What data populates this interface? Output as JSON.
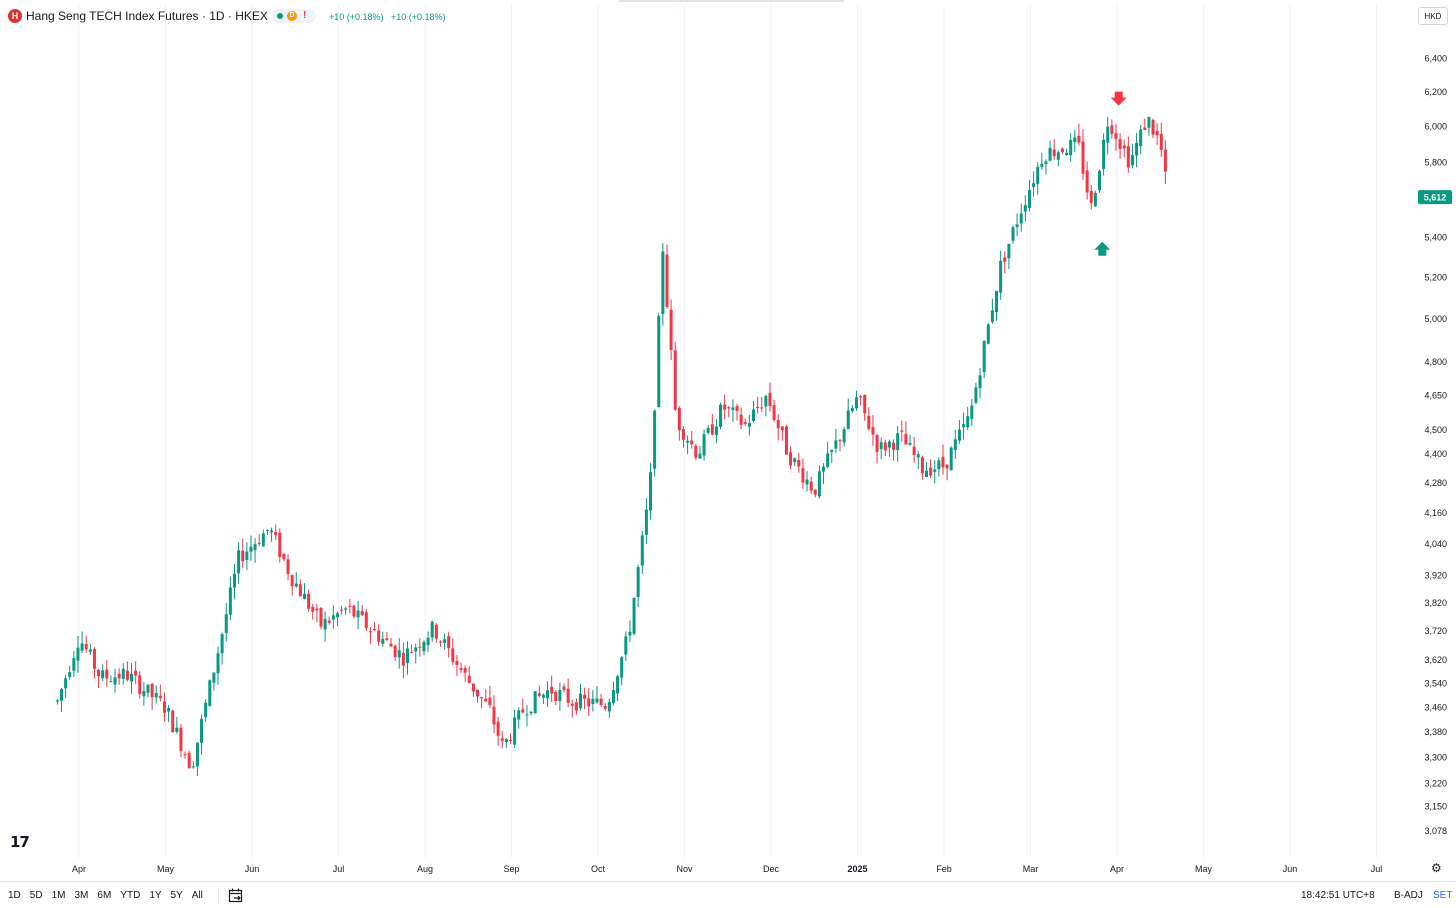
{
  "header": {
    "logo_letter": "H",
    "symbol_title": "Hang Seng TECH Index Futures · 1D · HKEX",
    "status_delay_letter": "D",
    "status_warning": "!",
    "change_1": "+10 (+0.18%)",
    "change_2": "+10 (+0.18%)",
    "currency": "HKD"
  },
  "toolbar_bottom": {
    "ranges": [
      "1D",
      "5D",
      "1M",
      "3M",
      "6M",
      "YTD",
      "1Y",
      "5Y",
      "All"
    ],
    "clock": "18:42:51 UTC+8",
    "adjustment": "B-ADJ",
    "session": "SET"
  },
  "branding": {
    "logo_text": "17"
  },
  "colors": {
    "up": "#089981",
    "down": "#f23645",
    "grid": "#f0f3fa",
    "text": "#131722",
    "price_tag": "#089981"
  },
  "icons": {
    "settings": "gear-icon",
    "calendar": "calendar-goto-icon",
    "signal_up": "arrow-up-icon",
    "signal_down": "arrow-down-icon"
  },
  "chart_data": {
    "type": "candlestick",
    "y_scale": "log",
    "ylim": [
      3000,
      6550
    ],
    "y_ticks": [
      6400,
      6200,
      6000,
      5800,
      5400,
      5200,
      5000,
      4800,
      4650,
      4500,
      4400,
      4280,
      4160,
      4040,
      3920,
      3820,
      3720,
      3620,
      3540,
      3460,
      3380,
      3300,
      3220,
      3150,
      3078
    ],
    "x_labels": [
      {
        "label": "Apr",
        "month_index": 1,
        "bold": false
      },
      {
        "label": "May",
        "month_index": 2,
        "bold": false
      },
      {
        "label": "Jun",
        "month_index": 3,
        "bold": false
      },
      {
        "label": "Jul",
        "month_index": 4,
        "bold": false
      },
      {
        "label": "Aug",
        "month_index": 5,
        "bold": false
      },
      {
        "label": "Sep",
        "month_index": 6,
        "bold": false
      },
      {
        "label": "Oct",
        "month_index": 7,
        "bold": false
      },
      {
        "label": "Nov",
        "month_index": 8,
        "bold": false
      },
      {
        "label": "Dec",
        "month_index": 9,
        "bold": false
      },
      {
        "label": "2025",
        "month_index": 10,
        "bold": true
      },
      {
        "label": "Feb",
        "month_index": 11,
        "bold": false
      },
      {
        "label": "Mar",
        "month_index": 12,
        "bold": false
      },
      {
        "label": "Apr",
        "month_index": 13,
        "bold": false
      },
      {
        "label": "May",
        "month_index": 14,
        "bold": false
      },
      {
        "label": "Jun",
        "month_index": 15,
        "bold": false
      },
      {
        "label": "Jul",
        "month_index": 16,
        "bold": false
      }
    ],
    "last_price": 5612,
    "last_price_label": "5,612",
    "signals": [
      {
        "type": "sell",
        "month_index": 12.27,
        "price": 6120
      },
      {
        "type": "buy",
        "month_index": 12.08,
        "price": 5400
      }
    ],
    "anchors": [
      [
        0.0,
        3480
      ],
      [
        0.25,
        3700
      ],
      [
        0.5,
        3560
      ],
      [
        0.8,
        3570
      ],
      [
        1.25,
        3460
      ],
      [
        1.55,
        3270
      ],
      [
        1.85,
        3640
      ],
      [
        2.1,
        3990
      ],
      [
        2.45,
        4100
      ],
      [
        2.7,
        3920
      ],
      [
        3.05,
        3740
      ],
      [
        3.35,
        3800
      ],
      [
        3.65,
        3720
      ],
      [
        4.0,
        3630
      ],
      [
        4.35,
        3730
      ],
      [
        4.7,
        3570
      ],
      [
        5.0,
        3450
      ],
      [
        5.15,
        3330
      ],
      [
        5.4,
        3460
      ],
      [
        5.7,
        3520
      ],
      [
        5.95,
        3480
      ],
      [
        6.35,
        3470
      ],
      [
        6.6,
        3700
      ],
      [
        6.85,
        4250
      ],
      [
        7.0,
        5350
      ],
      [
        7.15,
        4550
      ],
      [
        7.4,
        4400
      ],
      [
        7.7,
        4600
      ],
      [
        7.95,
        4520
      ],
      [
        8.2,
        4650
      ],
      [
        8.45,
        4400
      ],
      [
        8.75,
        4250
      ],
      [
        9.0,
        4440
      ],
      [
        9.25,
        4640
      ],
      [
        9.5,
        4420
      ],
      [
        9.75,
        4470
      ],
      [
        10.0,
        4340
      ],
      [
        10.25,
        4350
      ],
      [
        10.55,
        4560
      ],
      [
        10.9,
        5250
      ],
      [
        11.15,
        5560
      ],
      [
        11.4,
        5850
      ],
      [
        11.8,
        5900
      ],
      [
        11.95,
        5550
      ],
      [
        12.15,
        6050
      ],
      [
        12.4,
        5800
      ],
      [
        12.6,
        6050
      ],
      [
        12.75,
        5900
      ],
      [
        12.84,
        5612
      ]
    ]
  }
}
